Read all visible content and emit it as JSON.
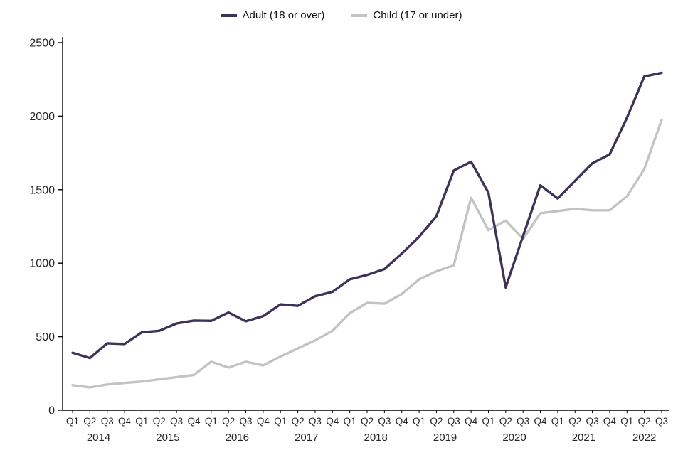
{
  "chart_data": {
    "type": "line",
    "title": "",
    "xlabel": "",
    "ylabel": "",
    "ylim": [
      0,
      2500
    ],
    "y_ticks": [
      0,
      500,
      1000,
      1500,
      2000,
      2500
    ],
    "grid": false,
    "legend_position": "top",
    "background": "#ffffff",
    "axis_color": "#000000",
    "text_color": "#262626",
    "x_quarter_labels": [
      "Q1",
      "Q2",
      "Q3",
      "Q4",
      "Q1",
      "Q2",
      "Q3",
      "Q4",
      "Q1",
      "Q2",
      "Q3",
      "Q4",
      "Q1",
      "Q2",
      "Q3",
      "Q4",
      "Q1",
      "Q2",
      "Q3",
      "Q4",
      "Q1",
      "Q2",
      "Q3",
      "Q4",
      "Q1",
      "Q2",
      "Q3",
      "Q4",
      "Q1",
      "Q2",
      "Q3",
      "Q4",
      "Q1",
      "Q2",
      "Q3"
    ],
    "years": [
      {
        "label": "2014",
        "quarters": 4
      },
      {
        "label": "2015",
        "quarters": 4
      },
      {
        "label": "2016",
        "quarters": 4
      },
      {
        "label": "2017",
        "quarters": 4
      },
      {
        "label": "2018",
        "quarters": 4
      },
      {
        "label": "2019",
        "quarters": 4
      },
      {
        "label": "2020",
        "quarters": 4
      },
      {
        "label": "2021",
        "quarters": 4
      },
      {
        "label": "2022",
        "quarters": 3
      }
    ],
    "series": [
      {
        "name": "Adult (18 or over)",
        "color": "#3f3259",
        "values": [
          390,
          355,
          455,
          450,
          530,
          540,
          590,
          610,
          608,
          665,
          605,
          640,
          720,
          710,
          775,
          805,
          890,
          920,
          960,
          1065,
          1180,
          1320,
          1630,
          1690,
          1480,
          835,
          1185,
          1530,
          1440,
          1560,
          1680,
          1740,
          1990,
          2270,
          2295
        ]
      },
      {
        "name": "Child (17 or under)",
        "color": "#c3c3c3",
        "values": [
          170,
          155,
          175,
          185,
          195,
          210,
          225,
          240,
          330,
          290,
          330,
          305,
          365,
          420,
          475,
          540,
          660,
          730,
          725,
          790,
          890,
          945,
          985,
          1445,
          1225,
          1290,
          1165,
          1340,
          1355,
          1370,
          1360,
          1360,
          1455,
          1640,
          1975
        ]
      }
    ]
  }
}
